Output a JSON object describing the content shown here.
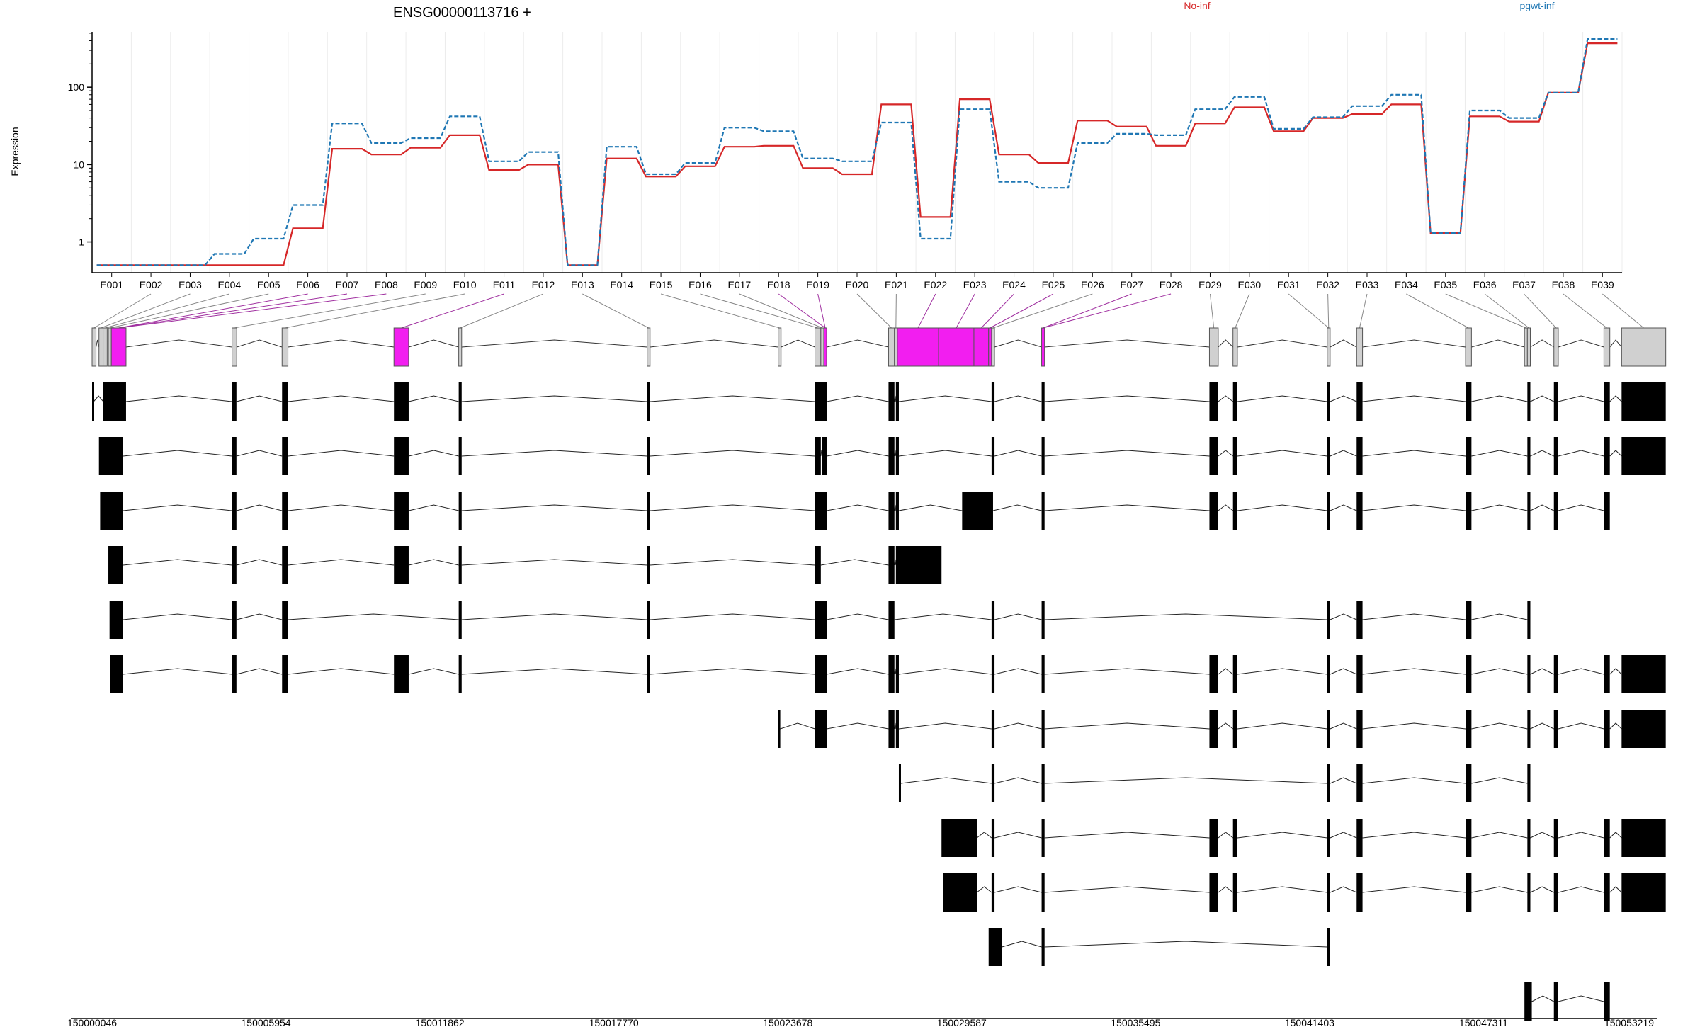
{
  "chart_data": {
    "type": "line",
    "title": "ENSG00000113716 +",
    "ylabel": "Expression",
    "y_scale": "log",
    "y_ticks": [
      "1",
      "10",
      "100"
    ],
    "grid": "vertical gridlines, light",
    "legend_position": "top-right",
    "categories": [
      "E001",
      "E002",
      "E003",
      "E004",
      "E005",
      "E006",
      "E007",
      "E008",
      "E009",
      "E010",
      "E011",
      "E012",
      "E013",
      "E014",
      "E015",
      "E016",
      "E017",
      "E018",
      "E019",
      "E020",
      "E021",
      "E022",
      "E023",
      "E024",
      "E025",
      "E026",
      "E027",
      "E028",
      "E029",
      "E030",
      "E031",
      "E032",
      "E033",
      "E034",
      "E035",
      "E036",
      "E037",
      "E038",
      "E039"
    ],
    "series": [
      {
        "name": "No-inf",
        "color": "#d62728",
        "values": [
          0.5,
          0.5,
          0.5,
          0.5,
          0.5,
          1.5,
          16,
          13.5,
          16.5,
          24,
          8.5,
          10,
          0.5,
          12,
          7,
          9.5,
          17,
          17.5,
          9,
          7.5,
          60,
          2.1,
          70,
          13.5,
          10.5,
          37,
          31,
          17.5,
          34,
          55,
          27,
          40,
          45,
          60,
          1.3,
          42,
          36,
          85,
          370
        ]
      },
      {
        "name": "pgwt-inf",
        "color": "#1f77b4",
        "values": [
          0.5,
          0.5,
          0.5,
          0.7,
          1.1,
          3.0,
          34,
          19,
          22,
          42,
          11,
          14.5,
          0.5,
          17,
          7.5,
          10.5,
          30,
          27,
          12,
          11,
          35,
          1.1,
          52,
          6,
          5,
          19,
          25,
          24,
          52,
          75,
          29,
          41,
          57,
          80,
          1.3,
          50,
          40,
          85,
          420
        ]
      }
    ],
    "exon_track": {
      "exons": [
        {
          "start": 150000046,
          "end": 150000180,
          "highlight": false
        },
        {
          "start": 150000280,
          "end": 150000420,
          "highlight": false
        },
        {
          "start": 150000420,
          "end": 150000560,
          "highlight": false
        },
        {
          "start": 150000600,
          "end": 150000700,
          "highlight": false
        },
        {
          "start": 150000700,
          "end": 150001200,
          "highlight": true
        },
        {
          "start": 150004800,
          "end": 150004960,
          "highlight": false
        },
        {
          "start": 150006500,
          "end": 150006700,
          "highlight": false
        },
        {
          "start": 150010300,
          "end": 150010800,
          "highlight": true
        },
        {
          "start": 150012500,
          "end": 150012600,
          "highlight": false
        },
        {
          "start": 150018900,
          "end": 150019000,
          "highlight": false
        },
        {
          "start": 150023350,
          "end": 150023450,
          "highlight": false
        },
        {
          "start": 150024600,
          "end": 150024800,
          "highlight": false
        },
        {
          "start": 150024800,
          "end": 150024900,
          "highlight": false
        },
        {
          "start": 150024900,
          "end": 150025000,
          "highlight": true
        },
        {
          "start": 150027100,
          "end": 150027300,
          "highlight": false
        },
        {
          "start": 150027300,
          "end": 150027400,
          "highlight": false
        },
        {
          "start": 150027400,
          "end": 150028800,
          "highlight": true
        },
        {
          "start": 150028800,
          "end": 150030000,
          "highlight": true
        },
        {
          "start": 150030000,
          "end": 150030500,
          "highlight": true
        },
        {
          "start": 150030500,
          "end": 150030600,
          "highlight": true
        },
        {
          "start": 150030600,
          "end": 150030700,
          "highlight": false
        },
        {
          "start": 150032300,
          "end": 150032400,
          "highlight": true
        },
        {
          "start": 150038000,
          "end": 150038300,
          "highlight": false
        },
        {
          "start": 150038800,
          "end": 150038950,
          "highlight": false
        },
        {
          "start": 150042000,
          "end": 150042100,
          "highlight": false
        },
        {
          "start": 150043000,
          "end": 150043200,
          "highlight": false
        },
        {
          "start": 150046700,
          "end": 150046900,
          "highlight": false
        },
        {
          "start": 150048700,
          "end": 150048800,
          "highlight": false
        },
        {
          "start": 150048800,
          "end": 150048900,
          "highlight": false
        },
        {
          "start": 150049700,
          "end": 150049850,
          "highlight": false
        },
        {
          "start": 150051400,
          "end": 150051600,
          "highlight": false
        },
        {
          "start": 150052000,
          "end": 150053500,
          "highlight": false
        }
      ],
      "label_links": [
        [
          1,
          0
        ],
        [
          2,
          1
        ],
        [
          3,
          2
        ],
        [
          4,
          3
        ],
        [
          5,
          4
        ],
        [
          6,
          4
        ],
        [
          7,
          4
        ],
        [
          8,
          5
        ],
        [
          9,
          6
        ],
        [
          10,
          7
        ],
        [
          11,
          8
        ],
        [
          12,
          9
        ],
        [
          14,
          10
        ],
        [
          15,
          11
        ],
        [
          16,
          12
        ],
        [
          17,
          13
        ],
        [
          18,
          13
        ],
        [
          19,
          14
        ],
        [
          20,
          15
        ],
        [
          21,
          16
        ],
        [
          22,
          17
        ],
        [
          23,
          18
        ],
        [
          24,
          19
        ],
        [
          25,
          20
        ],
        [
          26,
          21
        ],
        [
          27,
          21
        ],
        [
          28,
          22
        ],
        [
          29,
          23
        ],
        [
          30,
          24
        ],
        [
          31,
          24
        ],
        [
          32,
          25
        ],
        [
          33,
          26
        ],
        [
          34,
          27
        ],
        [
          35,
          28
        ],
        [
          36,
          29
        ],
        [
          37,
          30
        ],
        [
          38,
          31
        ]
      ],
      "x_ticks": [
        "150000046",
        "150005954",
        "150011862",
        "150017770",
        "150023678",
        "150029587",
        "150035495",
        "150041403",
        "150047311",
        "150053219"
      ],
      "x_min": 150000046,
      "x_max": 150053219
    },
    "transcripts": [
      [
        [
          150000046,
          150000100
        ],
        [
          150000430,
          150001200
        ],
        [
          150004800,
          150004950
        ],
        [
          150006500,
          150006700
        ],
        [
          150010300,
          150010800
        ],
        [
          150012500,
          150012600
        ],
        [
          150018900,
          150019000
        ],
        [
          150024600,
          150025000
        ],
        [
          150027100,
          150027300
        ],
        [
          150027350,
          150027450
        ],
        [
          150030600,
          150030700
        ],
        [
          150032300,
          150032400
        ],
        [
          150038000,
          150038300
        ],
        [
          150038800,
          150038950
        ],
        [
          150042000,
          150042100
        ],
        [
          150043000,
          150043200
        ],
        [
          150046700,
          150046900
        ],
        [
          150048800,
          150048900
        ],
        [
          150049700,
          150049850
        ],
        [
          150051400,
          150051600
        ],
        [
          150052000,
          150053500
        ]
      ],
      [
        [
          150000280,
          150001100
        ],
        [
          150004800,
          150004950
        ],
        [
          150006500,
          150006700
        ],
        [
          150010300,
          150010800
        ],
        [
          150012500,
          150012600
        ],
        [
          150018900,
          150019000
        ],
        [
          150024600,
          150024800
        ],
        [
          150024850,
          150025000
        ],
        [
          150027100,
          150027300
        ],
        [
          150027350,
          150027450
        ],
        [
          150030600,
          150030700
        ],
        [
          150032300,
          150032400
        ],
        [
          150038000,
          150038300
        ],
        [
          150038800,
          150038950
        ],
        [
          150042000,
          150042100
        ],
        [
          150043000,
          150043200
        ],
        [
          150046700,
          150046900
        ],
        [
          150048800,
          150048900
        ],
        [
          150049700,
          150049850
        ],
        [
          150051400,
          150051600
        ],
        [
          150052000,
          150053500
        ]
      ],
      [
        [
          150000320,
          150001100
        ],
        [
          150004800,
          150004950
        ],
        [
          150006500,
          150006700
        ],
        [
          150010300,
          150010800
        ],
        [
          150012500,
          150012600
        ],
        [
          150018900,
          150019000
        ],
        [
          150024600,
          150025000
        ],
        [
          150027100,
          150027300
        ],
        [
          150027350,
          150027450
        ],
        [
          150029600,
          150030650
        ],
        [
          150032300,
          150032400
        ],
        [
          150038000,
          150038300
        ],
        [
          150038800,
          150038950
        ],
        [
          150042000,
          150042100
        ],
        [
          150043000,
          150043200
        ],
        [
          150046700,
          150046900
        ],
        [
          150048800,
          150048900
        ],
        [
          150049700,
          150049850
        ],
        [
          150051400,
          150051600
        ]
      ],
      [
        [
          150000600,
          150001100
        ],
        [
          150004800,
          150004950
        ],
        [
          150006500,
          150006700
        ],
        [
          150010300,
          150010800
        ],
        [
          150012500,
          150012600
        ],
        [
          150018900,
          150019000
        ],
        [
          150024600,
          150024800
        ],
        [
          150027100,
          150027300
        ],
        [
          150027350,
          150028900
        ]
      ],
      [
        [
          150000640,
          150001100
        ],
        [
          150004800,
          150004950
        ],
        [
          150006500,
          150006700
        ],
        [
          150012500,
          150012600
        ],
        [
          150018900,
          150019000
        ],
        [
          150024600,
          150025000
        ],
        [
          150027100,
          150027300
        ],
        [
          150030600,
          150030700
        ],
        [
          150032300,
          150032400
        ],
        [
          150042000,
          150042100
        ],
        [
          150043000,
          150043200
        ],
        [
          150046700,
          150046900
        ],
        [
          150048800,
          150048900
        ]
      ],
      [
        [
          150000660,
          150001100
        ],
        [
          150004800,
          150004950
        ],
        [
          150006500,
          150006700
        ],
        [
          150010300,
          150010800
        ],
        [
          150012500,
          150012600
        ],
        [
          150018900,
          150019000
        ],
        [
          150024600,
          150025000
        ],
        [
          150027100,
          150027300
        ],
        [
          150027350,
          150027450
        ],
        [
          150030600,
          150030700
        ],
        [
          150032300,
          150032400
        ],
        [
          150038000,
          150038300
        ],
        [
          150038800,
          150038950
        ],
        [
          150042000,
          150042100
        ],
        [
          150043000,
          150043200
        ],
        [
          150046700,
          150046900
        ],
        [
          150048800,
          150048900
        ],
        [
          150049700,
          150049850
        ],
        [
          150051400,
          150051600
        ],
        [
          150052000,
          150053500
        ]
      ],
      [
        [
          150023350,
          150023420
        ],
        [
          150024600,
          150025000
        ],
        [
          150027100,
          150027300
        ],
        [
          150027350,
          150027450
        ],
        [
          150030600,
          150030700
        ],
        [
          150032300,
          150032400
        ],
        [
          150038000,
          150038300
        ],
        [
          150038800,
          150038950
        ],
        [
          150042000,
          150042100
        ],
        [
          150043000,
          150043200
        ],
        [
          150046700,
          150046900
        ],
        [
          150048800,
          150048900
        ],
        [
          150049700,
          150049850
        ],
        [
          150051400,
          150051600
        ],
        [
          150052000,
          150053500
        ]
      ],
      [
        [
          150027450,
          150027520
        ],
        [
          150030600,
          150030700
        ],
        [
          150032300,
          150032400
        ],
        [
          150042000,
          150042100
        ],
        [
          150043000,
          150043200
        ],
        [
          150046700,
          150046900
        ],
        [
          150048800,
          150048900
        ]
      ],
      [
        [
          150028900,
          150030100
        ],
        [
          150030600,
          150030700
        ],
        [
          150032300,
          150032400
        ],
        [
          150038000,
          150038300
        ],
        [
          150038800,
          150038950
        ],
        [
          150042000,
          150042100
        ],
        [
          150043000,
          150043200
        ],
        [
          150046700,
          150046900
        ],
        [
          150048800,
          150048900
        ],
        [
          150049700,
          150049850
        ],
        [
          150051400,
          150051600
        ],
        [
          150052000,
          150053500
        ]
      ],
      [
        [
          150028950,
          150030100
        ],
        [
          150030600,
          150030700
        ],
        [
          150032300,
          150032400
        ],
        [
          150038000,
          150038300
        ],
        [
          150038800,
          150038950
        ],
        [
          150042000,
          150042100
        ],
        [
          150043000,
          150043200
        ],
        [
          150046700,
          150046900
        ],
        [
          150048800,
          150048900
        ],
        [
          150049700,
          150049850
        ],
        [
          150051400,
          150051600
        ],
        [
          150052000,
          150053500
        ]
      ],
      [
        [
          150030500,
          150030950
        ],
        [
          150032300,
          150032400
        ],
        [
          150042000,
          150042100
        ]
      ],
      [
        [
          150048700,
          150048950
        ],
        [
          150049700,
          150049850
        ],
        [
          150051400,
          150051600
        ]
      ]
    ]
  }
}
